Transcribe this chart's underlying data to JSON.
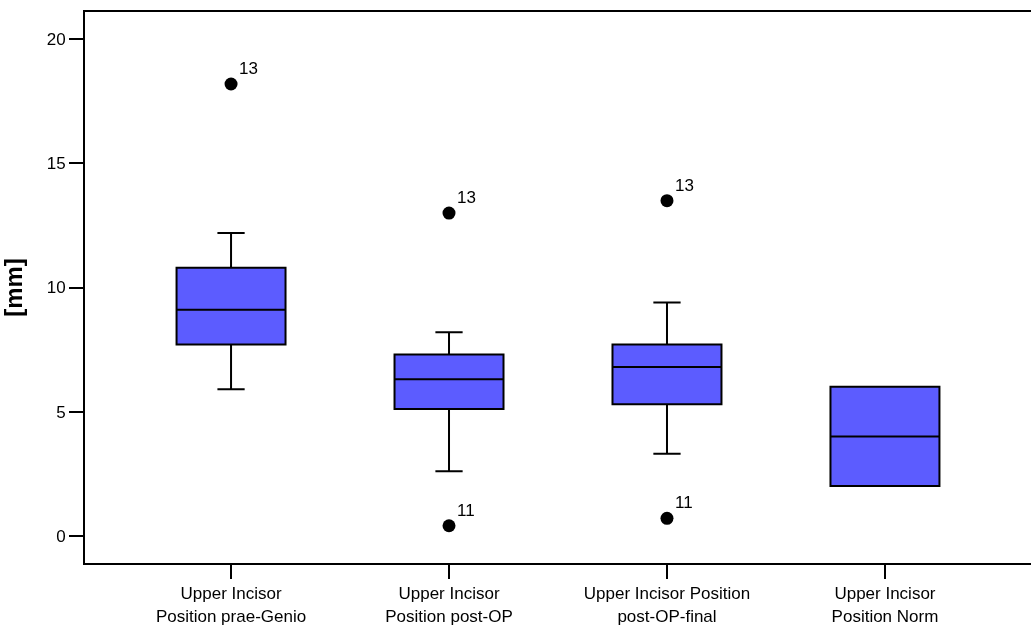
{
  "chart_data": {
    "type": "box",
    "ylabel": "[mm]",
    "categories": [
      "Upper Incisor\nPosition prae-Genio",
      "Upper Incisor\nPosition post-OP",
      "Upper Incisor Position\npost-OP-final",
      "Upper Incisor\nPosition Norm"
    ],
    "color": "#5c5cff",
    "boxes": [
      {
        "low": 5.9,
        "q1": 7.7,
        "median": 9.1,
        "q3": 10.8,
        "high": 12.2,
        "outliers": [
          18.2
        ]
      },
      {
        "low": 2.6,
        "q1": 5.1,
        "median": 6.3,
        "q3": 7.3,
        "high": 8.2,
        "outliers": [
          13.0,
          0.4
        ]
      },
      {
        "low": 3.3,
        "q1": 5.3,
        "median": 6.8,
        "q3": 7.7,
        "high": 9.4,
        "outliers": [
          13.5,
          0.7
        ]
      },
      {
        "low": 2.0,
        "q1": 2.0,
        "median": 4.0,
        "q3": 6.0,
        "high": 6.0
      }
    ],
    "annotations": [
      "13",
      "13",
      "11",
      "13",
      "11"
    ],
    "ylim": [
      -1.1,
      21.1
    ],
    "yticks": [
      0,
      5,
      10,
      15,
      20
    ]
  }
}
